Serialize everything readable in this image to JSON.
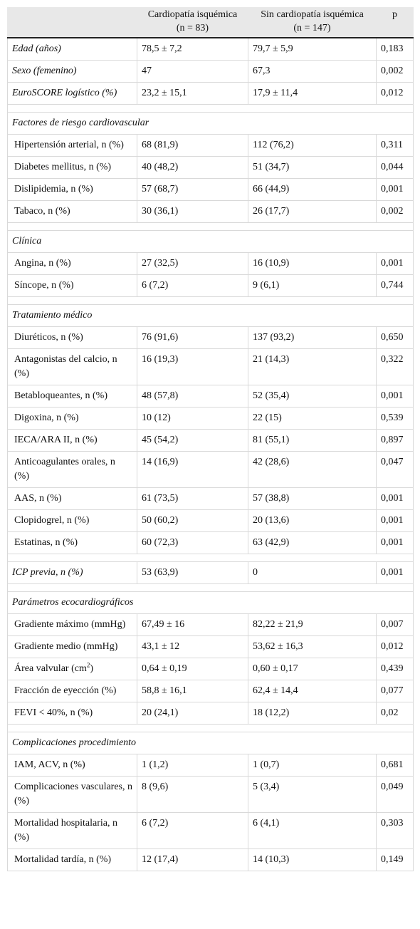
{
  "table": {
    "columns": [
      {
        "title": "Cardiopatía isquémica",
        "n": "(n = 83)"
      },
      {
        "title": "Sin cardiopatía isquémica",
        "n": "(n = 147)"
      },
      {
        "title": "p"
      }
    ],
    "groups": [
      {
        "rows": [
          [
            "Edad (años)",
            "78,5 ± 7,2",
            "79,7 ± 5,9",
            "0,183"
          ],
          [
            "Sexo (femenino)",
            "47",
            "67,3",
            "0,002"
          ],
          [
            "EuroSCORE logístico (%)",
            "23,2 ± 15,1",
            "17,9 ± 11,4",
            "0,012"
          ]
        ]
      },
      {
        "title": "Factores de riesgo cardiovascular",
        "rows": [
          [
            "Hipertensión arterial, n (%)",
            "68 (81,9)",
            "112 (76,2)",
            "0,311"
          ],
          [
            "Diabetes mellitus, n (%)",
            "40 (48,2)",
            "51 (34,7)",
            "0,044"
          ],
          [
            "Dislipidemia, n (%)",
            "57 (68,7)",
            "66 (44,9)",
            "0,001"
          ],
          [
            "Tabaco, n (%)",
            "30 (36,1)",
            "26 (17,7)",
            "0,002"
          ]
        ]
      },
      {
        "title": "Clínica",
        "rows": [
          [
            "Angina, n (%)",
            "27 (32,5)",
            "16 (10,9)",
            "0,001"
          ],
          [
            "Síncope, n (%)",
            "6 (7,2)",
            "9 (6,1)",
            "0,744"
          ]
        ]
      },
      {
        "title": "Tratamiento médico",
        "rows": [
          [
            "Diuréticos, n (%)",
            "76 (91,6)",
            "137 (93,2)",
            "0,650"
          ],
          [
            "Antagonistas del calcio, n (%)",
            "16 (19,3)",
            "21 (14,3)",
            "0,322"
          ],
          [
            "Betabloqueantes, n (%)",
            "48 (57,8)",
            "52 (35,4)",
            "0,001"
          ],
          [
            "Digoxina, n (%)",
            "10 (12)",
            "22 (15)",
            "0,539"
          ],
          [
            "IECA/ARA II, n (%)",
            "45 (54,2)",
            "81 (55,1)",
            "0,897"
          ],
          [
            "Anticoagulantes orales, n (%)",
            "14 (16,9)",
            "42 (28,6)",
            "0,047"
          ],
          [
            "AAS, n (%)",
            "61 (73,5)",
            "57 (38,8)",
            "0,001"
          ],
          [
            "Clopidogrel, n (%)",
            "50 (60,2)",
            "20 (13,6)",
            "0,001"
          ],
          [
            "Estatinas, n (%)",
            "60 (72,3)",
            "63 (42,9)",
            "0,001"
          ]
        ]
      },
      {
        "rows": [
          [
            "ICP previa, n (%)",
            "53 (63,9)",
            "0",
            "0,001"
          ]
        ]
      },
      {
        "title": "Parámetros ecocardiográficos",
        "rows": [
          [
            "Gradiente máximo (mmHg)",
            "67,49 ± 16",
            "82,22 ± 21,9",
            "0,007"
          ],
          [
            "Gradiente medio (mmHg)",
            "43,1 ± 12",
            "53,62 ± 16,3",
            "0,012"
          ],
          [
            {
              "text": "Área valvular (cm",
              "sup": "2",
              "tail": ")"
            },
            "0,64 ± 0,19",
            "0,60 ± 0,17",
            "0,439"
          ],
          [
            "Fracción de eyección (%)",
            "58,8 ± 16,1",
            "62,4 ± 14,4",
            "0,077"
          ],
          [
            "FEVI < 40%, n (%)",
            "20 (24,1)",
            "18 (12,2)",
            "0,02"
          ]
        ]
      },
      {
        "title": "Complicaciones procedimiento",
        "rows": [
          [
            "IAM, ACV, n (%)",
            "1 (1,2)",
            "1 (0,7)",
            "0,681"
          ],
          [
            "Complicaciones vasculares, n (%)",
            "8 (9,6)",
            "5 (3,4)",
            "0,049"
          ],
          [
            "Mortalidad hospitalaria, n (%)",
            "6 (7,2)",
            "6 (4,1)",
            "0,303"
          ],
          [
            "Mortalidad tardía, n (%)",
            "12 (17,4)",
            "14 (10,3)",
            "0,149"
          ]
        ]
      }
    ]
  }
}
